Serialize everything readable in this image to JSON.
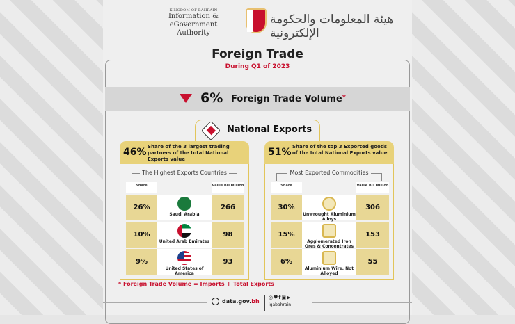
{
  "header": {
    "kingdom": "KINGDOM OF BAHRAIN",
    "org_line1": "Information & eGovernment",
    "org_line2": "Authority",
    "org_arabic": "هيئة المعلومات والحكومة الإلكترونية"
  },
  "title": "Foreign Trade",
  "subtitle": "During Q1 of 2023",
  "trade_volume": {
    "direction": "down",
    "value": "6%",
    "label": "Foreign Trade Volume",
    "asterisk": "*",
    "color": "#c8102e"
  },
  "section": {
    "title": "National Exports"
  },
  "countries": {
    "pct": "46%",
    "desc": "Share of the 3 largest trading partners of the total National Exports value",
    "heading": "The Highest Exports Countries",
    "share_label": "Share",
    "value_label": "Value BD Million",
    "rows": [
      {
        "share": "26%",
        "name": "Saudi Arabia",
        "value": "266",
        "flag": "saudi-flag"
      },
      {
        "share": "10%",
        "name": "United Arab Emirates",
        "value": "98",
        "flag": "uae-flag"
      },
      {
        "share": "9%",
        "name": "United States of America",
        "value": "93",
        "flag": "usa-flag"
      }
    ]
  },
  "commodities": {
    "pct": "51%",
    "desc": "Share of the top 3 Exported goods of the total National Exports value",
    "heading": "Most Exported Commodities",
    "share_label": "Share",
    "value_label": "Value BD Million",
    "rows": [
      {
        "share": "30%",
        "name": "Unwrought Aluminium Alloys",
        "value": "306",
        "icon": "aluminium-ring-icon"
      },
      {
        "share": "15%",
        "name": "Agglomerated Iron Ores & Concentrates",
        "value": "153",
        "icon": "iron-bars-icon"
      },
      {
        "share": "6%",
        "name": "Aluminium Wire, Not Alloyed",
        "value": "55",
        "icon": "wire-spool-icon"
      }
    ]
  },
  "footnote": "* Foreign Trade Volume = Imports + Total Exports",
  "footer": {
    "site_main": "data.gov.",
    "site_tld": "bh",
    "social": "◎♥f▣▶",
    "handle": "igabahrain"
  },
  "colors": {
    "accent": "#c8102e",
    "gold": "#e8d27a"
  }
}
